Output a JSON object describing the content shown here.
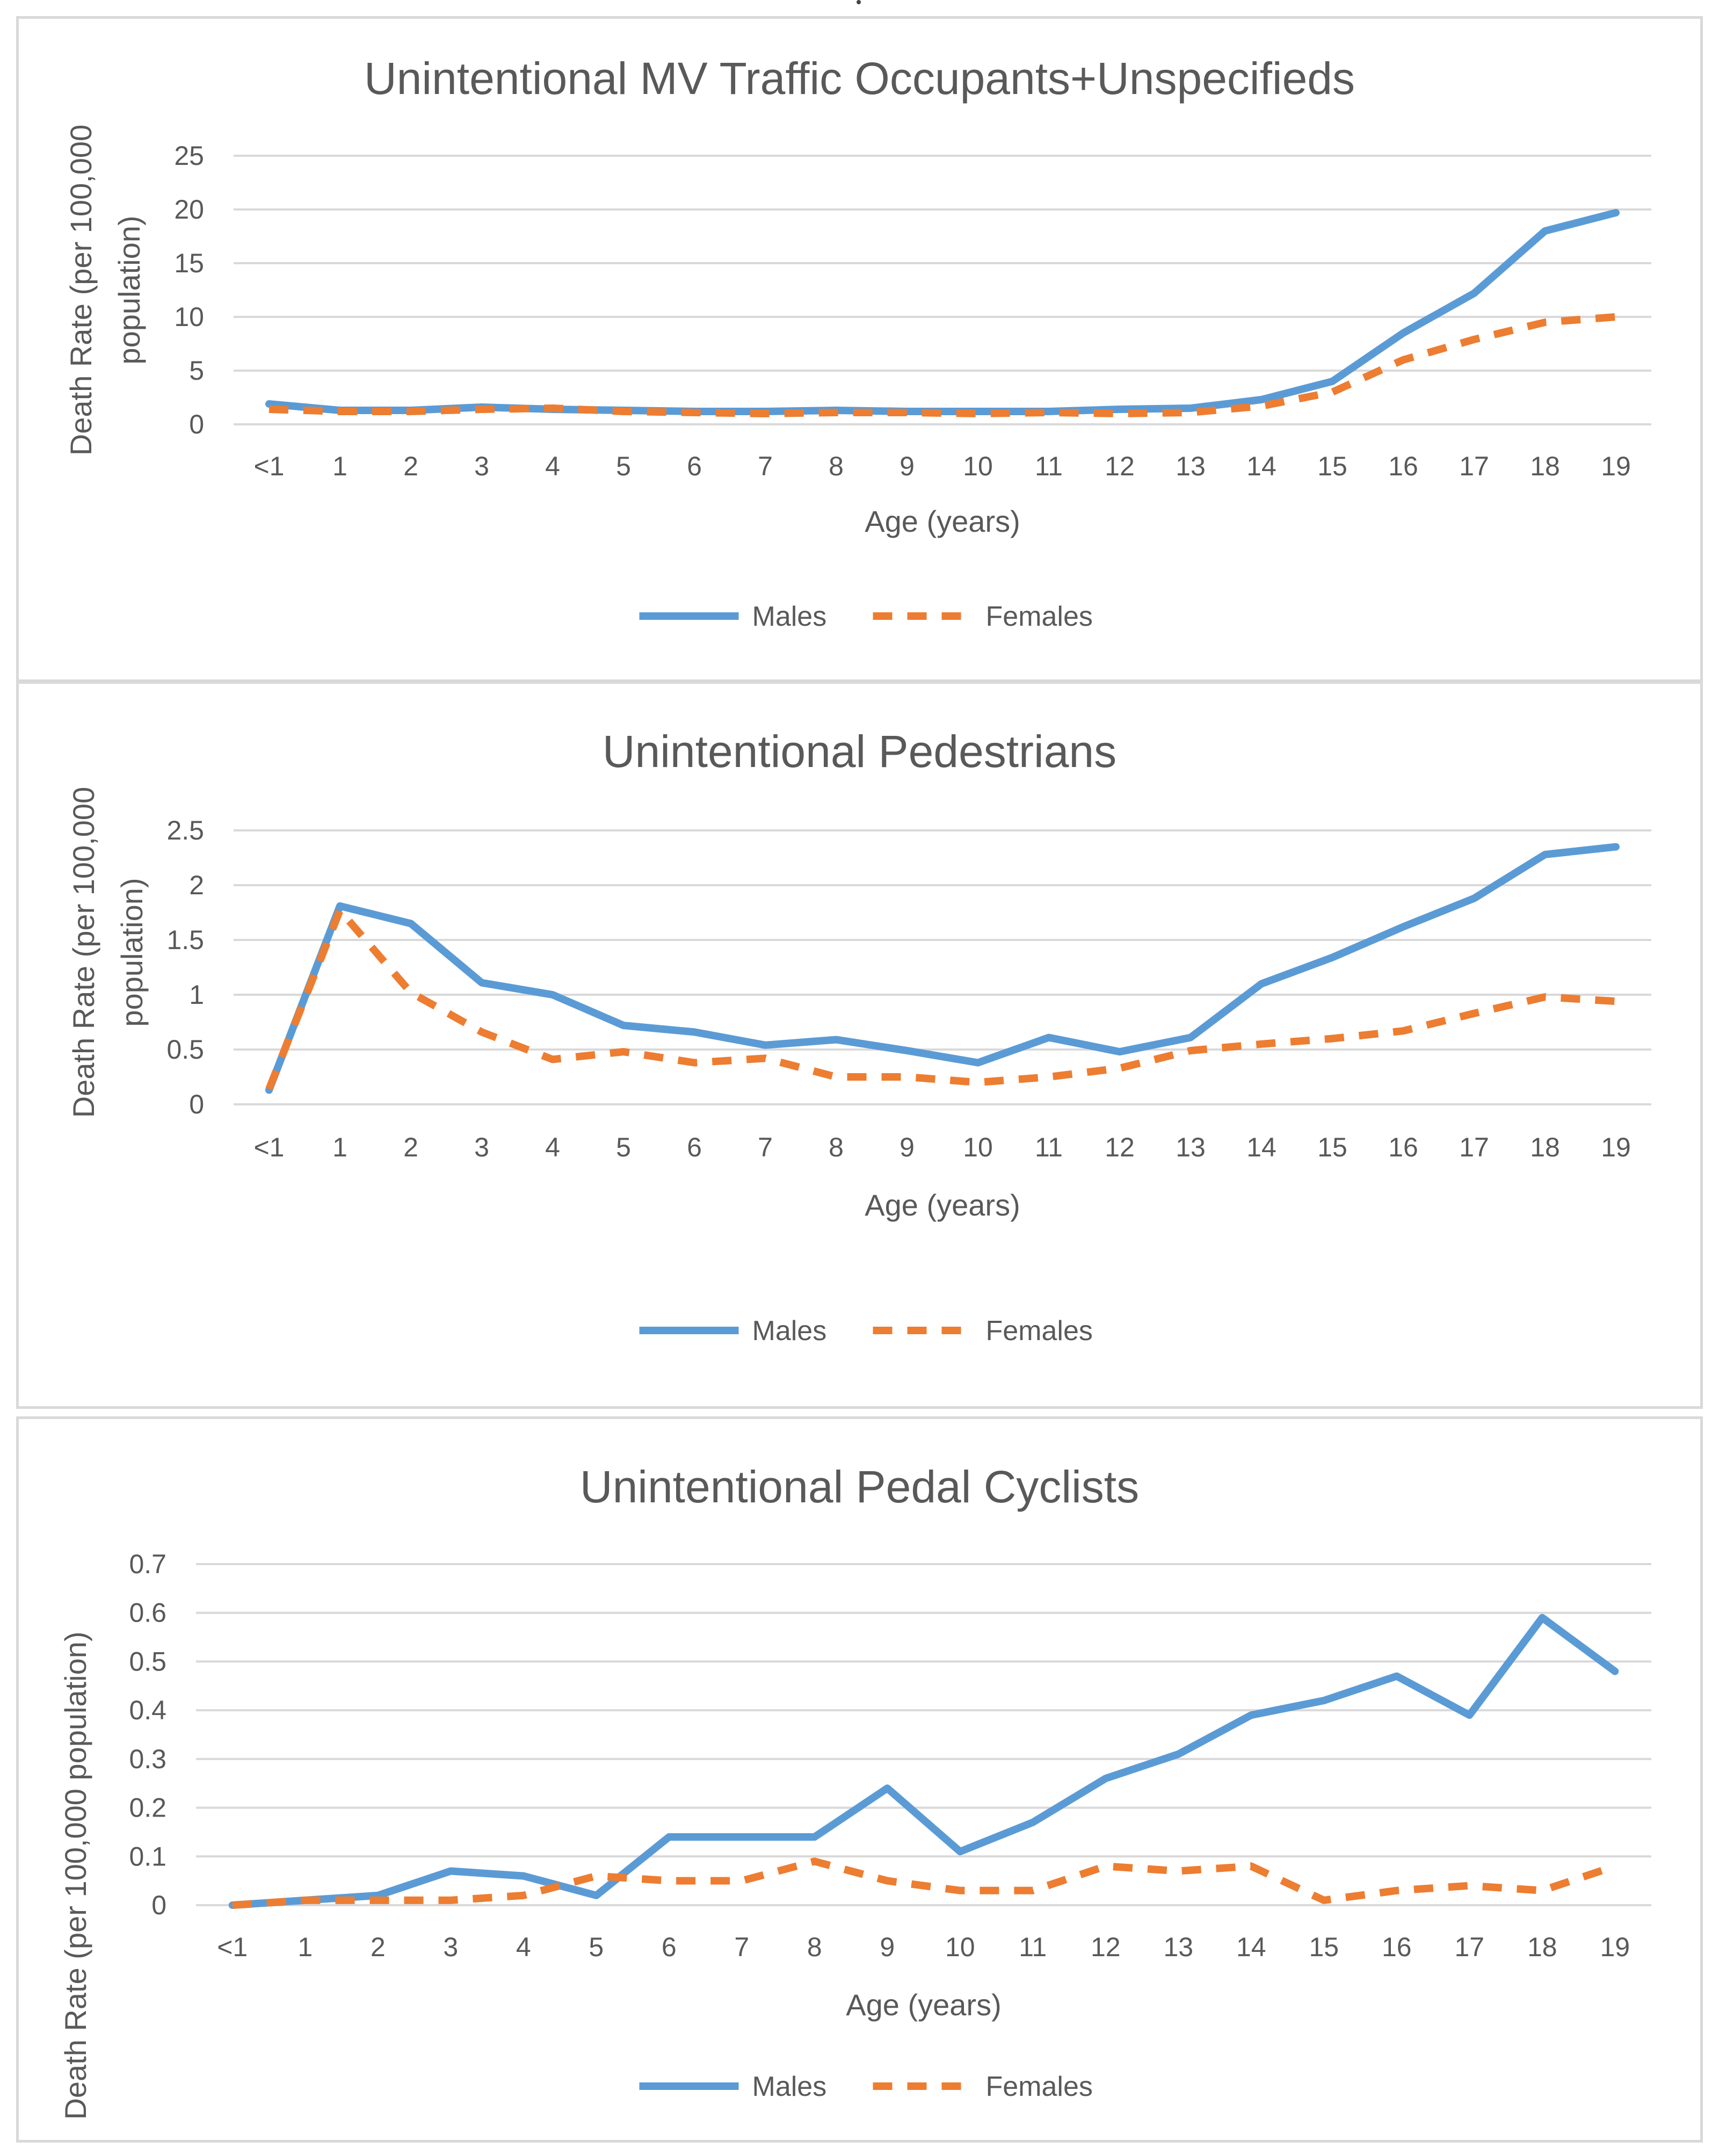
{
  "chart_data": [
    {
      "type": "line",
      "title": "Unintentional MV Traffic Occupants+Unspecifieds",
      "xlabel": "Age (years)",
      "ylabel": [
        "Death Rate (per 100,000",
        "population)"
      ],
      "categories": [
        "<1",
        "1",
        "2",
        "3",
        "4",
        "5",
        "6",
        "7",
        "8",
        "9",
        "10",
        "11",
        "12",
        "13",
        "14",
        "15",
        "16",
        "17",
        "18",
        "19"
      ],
      "yticks": [
        "0",
        "5",
        "10",
        "15",
        "20",
        "25"
      ],
      "ylim": [
        0,
        25
      ],
      "grid": true,
      "legend": "bottom",
      "series": [
        {
          "name": "Males",
          "color": "#5b9bd5",
          "dash": "solid",
          "values": [
            1.9,
            1.3,
            1.3,
            1.6,
            1.4,
            1.3,
            1.2,
            1.2,
            1.3,
            1.2,
            1.2,
            1.2,
            1.4,
            1.5,
            2.3,
            4.0,
            8.5,
            12.2,
            18.0,
            19.7
          ]
        },
        {
          "name": "Females",
          "color": "#ed7d31",
          "dash": "dashed",
          "values": [
            1.4,
            1.2,
            1.2,
            1.4,
            1.5,
            1.2,
            1.1,
            1.0,
            1.1,
            1.1,
            1.0,
            1.1,
            1.0,
            1.1,
            1.7,
            3.0,
            6.0,
            7.9,
            9.5,
            10.0
          ]
        }
      ]
    },
    {
      "type": "line",
      "title": "Unintentional Pedestrians",
      "xlabel": "Age (years)",
      "ylabel": [
        "Death Rate (per 100,000",
        "population)"
      ],
      "categories": [
        "<1",
        "1",
        "2",
        "3",
        "4",
        "5",
        "6",
        "7",
        "8",
        "9",
        "10",
        "11",
        "12",
        "13",
        "14",
        "15",
        "16",
        "17",
        "18",
        "19"
      ],
      "yticks": [
        "0",
        "0.5",
        "1",
        "1.5",
        "2",
        "2.5"
      ],
      "ylim": [
        0,
        2.5
      ],
      "grid": true,
      "legend": "bottom",
      "series": [
        {
          "name": "Males",
          "color": "#5b9bd5",
          "dash": "solid",
          "values": [
            0.13,
            1.81,
            1.65,
            1.11,
            1.0,
            0.72,
            0.66,
            0.54,
            0.59,
            0.49,
            0.38,
            0.61,
            0.48,
            0.61,
            1.1,
            1.34,
            1.62,
            1.88,
            2.28,
            2.35
          ]
        },
        {
          "name": "Females",
          "color": "#ed7d31",
          "dash": "dashed",
          "values": [
            0.14,
            1.77,
            1.02,
            0.66,
            0.41,
            0.48,
            0.38,
            0.42,
            0.25,
            0.25,
            0.2,
            0.25,
            0.33,
            0.49,
            0.55,
            0.6,
            0.67,
            0.83,
            0.98,
            0.94
          ]
        }
      ]
    },
    {
      "type": "line",
      "title": "Unintentional Pedal Cyclists",
      "xlabel": "Age (years)",
      "ylabel": [
        "Death Rate (per 100,000 population)"
      ],
      "categories": [
        "<1",
        "1",
        "2",
        "3",
        "4",
        "5",
        "6",
        "7",
        "8",
        "9",
        "10",
        "11",
        "12",
        "13",
        "14",
        "15",
        "16",
        "17",
        "18",
        "19"
      ],
      "yticks": [
        "0",
        "0.1",
        "0.2",
        "0.3",
        "0.4",
        "0.5",
        "0.6",
        "0.7"
      ],
      "ylim": [
        0,
        0.7
      ],
      "grid": true,
      "legend": "bottom",
      "series": [
        {
          "name": "Males",
          "color": "#5b9bd5",
          "dash": "solid",
          "values": [
            0.0,
            0.01,
            0.02,
            0.07,
            0.06,
            0.02,
            0.14,
            0.14,
            0.14,
            0.24,
            0.11,
            0.17,
            0.26,
            0.31,
            0.39,
            0.42,
            0.47,
            0.39,
            0.59,
            0.48
          ]
        },
        {
          "name": "Females",
          "color": "#ed7d31",
          "dash": "dashed",
          "values": [
            0.0,
            0.01,
            0.01,
            0.01,
            0.02,
            0.06,
            0.05,
            0.05,
            0.09,
            0.05,
            0.03,
            0.03,
            0.08,
            0.07,
            0.08,
            0.01,
            0.03,
            0.04,
            0.03,
            0.08
          ]
        }
      ]
    }
  ]
}
